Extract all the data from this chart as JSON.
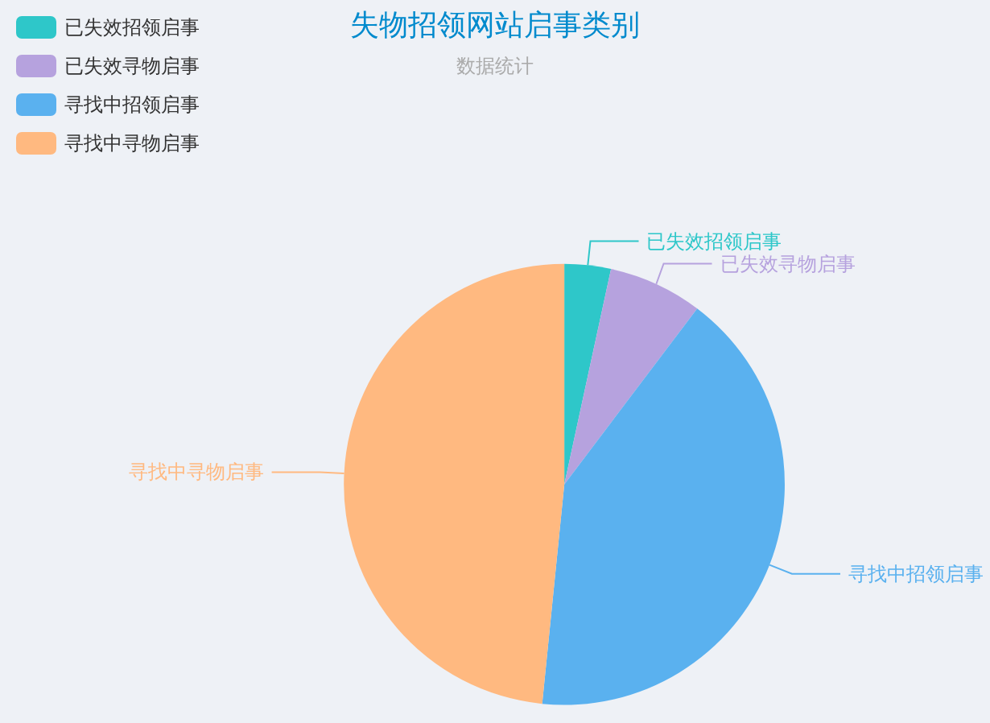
{
  "chart_data": {
    "type": "pie",
    "title": "失物招领网站启事类别",
    "subtitle": "数据统计",
    "categories": [
      "已失效招领启事",
      "已失效寻物启事",
      "寻找中招领启事",
      "寻找中寻物启事"
    ],
    "values": [
      3.4,
      6.9,
      41.3,
      48.4
    ],
    "colors": [
      "#2ec7c9",
      "#b6a2de",
      "#5ab1ef",
      "#ffb980"
    ],
    "legend": "top left"
  }
}
